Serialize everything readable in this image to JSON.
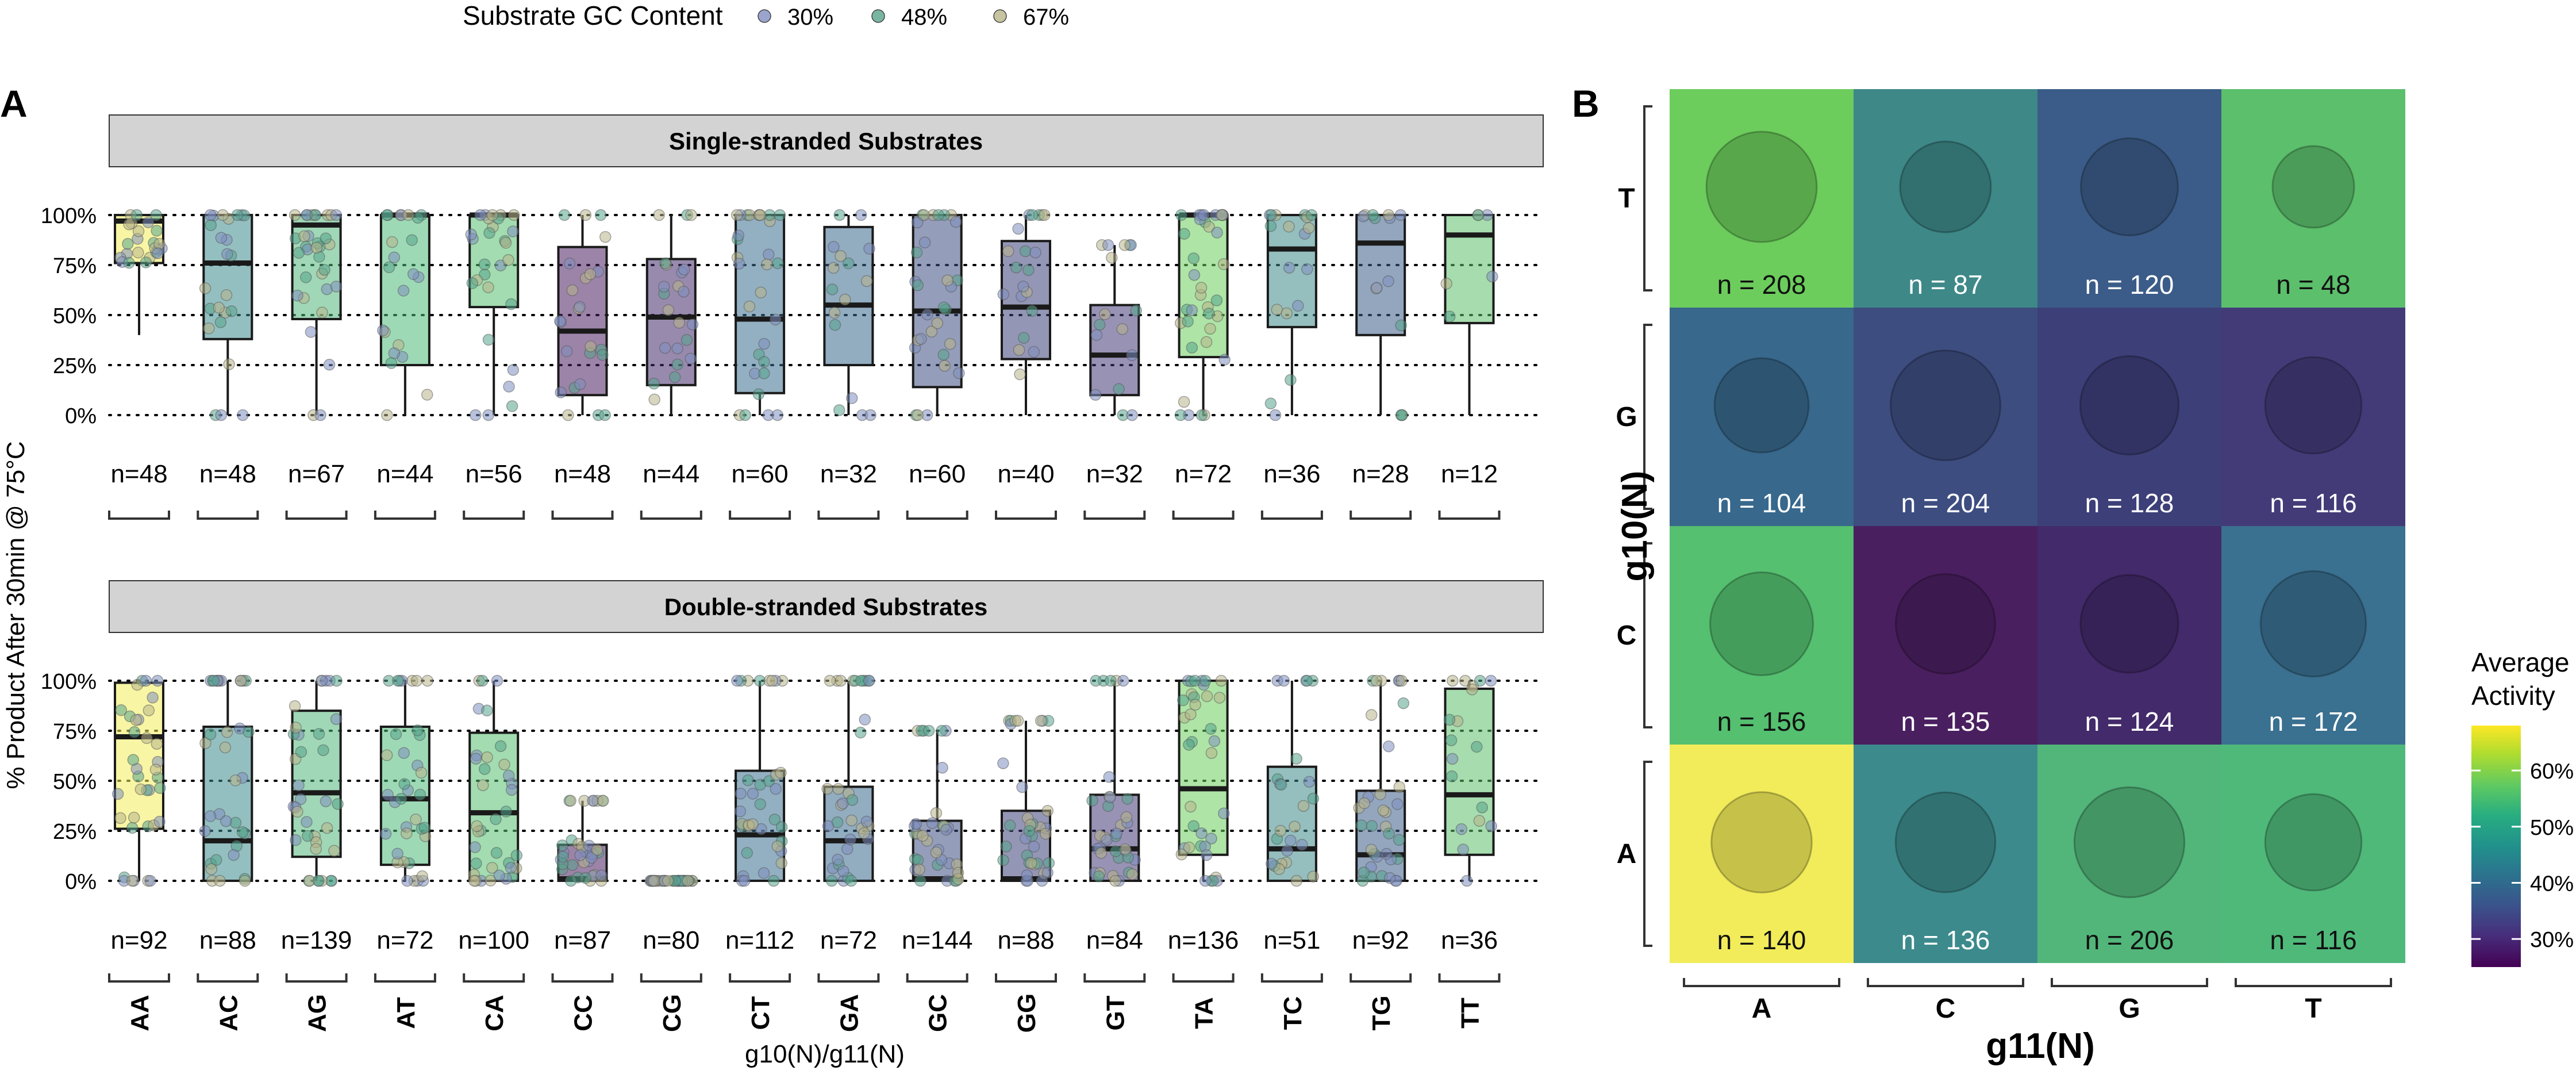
{
  "legend": {
    "title": "Substrate GC Content",
    "items": [
      {
        "label": "30%",
        "color": "#7f8fbf"
      },
      {
        "label": "48%",
        "color": "#56a48c"
      },
      {
        "label": "67%",
        "color": "#b8b58a"
      }
    ]
  },
  "panel_a": {
    "tag": "A",
    "ylabel": "% Product After 30min @ 75°C",
    "xlabel": "g10(N)/g11(N)",
    "y_ticks": [
      "0%",
      "25%",
      "50%",
      "75%",
      "100%"
    ]
  },
  "panel_b": {
    "tag": "B",
    "xlabel": "g11(N)",
    "ylabel": "g10(N)",
    "colorbar_title_1": "Average",
    "colorbar_title_2": "Activity",
    "colorbar_ticks": [
      "30%",
      "40%",
      "50%",
      "60%"
    ]
  },
  "colors": {
    "strip": "#d3d3d3",
    "grid": "#000000",
    "AA": "#f2ec5a",
    "AC": "#3c8a8c",
    "AG": "#52b67a",
    "AT": "#4fb97a",
    "CA": "#55c070",
    "CC": "#4a1f60",
    "CG": "#432a6a",
    "CT": "#3a7090",
    "GA": "#38688c",
    "GC": "#3d4d80",
    "GG": "#3d3f78",
    "GT": "#433b78",
    "TA": "#6ccd5c",
    "TC": "#3e8888",
    "TG": "#3b5c88",
    "TT": "#5cbf6c"
  },
  "chart_data": [
    {
      "type": "box",
      "title": "Single-stranded Substrates",
      "xlabel": "g10(N)/g11(N)",
      "ylabel": "% Product After 30min @ 75°C",
      "ylim": [
        0,
        100
      ],
      "categories": [
        "AA",
        "AC",
        "AG",
        "AT",
        "CA",
        "CC",
        "CG",
        "CT",
        "GA",
        "GC",
        "GG",
        "GT",
        "TA",
        "TC",
        "TG",
        "TT"
      ],
      "n_labels": [
        "n=48",
        "n=48",
        "n=67",
        "n=44",
        "n=56",
        "n=48",
        "n=44",
        "n=60",
        "n=32",
        "n=60",
        "n=40",
        "n=32",
        "n=72",
        "n=36",
        "n=28",
        "n=12"
      ],
      "boxes": [
        {
          "min": 40,
          "q1": 76,
          "median": 97,
          "q3": 100,
          "max": 100
        },
        {
          "min": 0,
          "q1": 38,
          "median": 76,
          "q3": 100,
          "max": 100
        },
        {
          "min": 0,
          "q1": 48,
          "median": 95,
          "q3": 100,
          "max": 100
        },
        {
          "min": 0,
          "q1": 25,
          "median": 100,
          "q3": 100,
          "max": 100
        },
        {
          "min": 0,
          "q1": 54,
          "median": 100,
          "q3": 100,
          "max": 100
        },
        {
          "min": 0,
          "q1": 10,
          "median": 42,
          "q3": 84,
          "max": 100
        },
        {
          "min": 0,
          "q1": 15,
          "median": 49,
          "q3": 78,
          "max": 100
        },
        {
          "min": 0,
          "q1": 11,
          "median": 48,
          "q3": 100,
          "max": 100
        },
        {
          "min": 0,
          "q1": 25,
          "median": 55,
          "q3": 94,
          "max": 100
        },
        {
          "min": 0,
          "q1": 14,
          "median": 52,
          "q3": 100,
          "max": 100
        },
        {
          "min": 0,
          "q1": 28,
          "median": 54,
          "q3": 87,
          "max": 100
        },
        {
          "min": 0,
          "q1": 10,
          "median": 30,
          "q3": 55,
          "max": 85
        },
        {
          "min": 0,
          "q1": 29,
          "median": 100,
          "q3": 100,
          "max": 100
        },
        {
          "min": 0,
          "q1": 44,
          "median": 83,
          "q3": 100,
          "max": 100
        },
        {
          "min": 0,
          "q1": 40,
          "median": 86,
          "q3": 100,
          "max": 100
        },
        {
          "min": 0,
          "q1": 46,
          "median": 90,
          "q3": 100,
          "max": 100
        }
      ]
    },
    {
      "type": "box",
      "title": "Double-stranded Substrates",
      "xlabel": "g10(N)/g11(N)",
      "ylabel": "% Product After 30min @ 75°C",
      "ylim": [
        0,
        100
      ],
      "categories": [
        "AA",
        "AC",
        "AG",
        "AT",
        "CA",
        "CC",
        "CG",
        "CT",
        "GA",
        "GC",
        "GG",
        "GT",
        "TA",
        "TC",
        "TG",
        "TT"
      ],
      "n_labels": [
        "n=92",
        "n=88",
        "n=139",
        "n=72",
        "n=100",
        "n=87",
        "n=80",
        "n=112",
        "n=72",
        "n=144",
        "n=88",
        "n=84",
        "n=136",
        "n=51",
        "n=92",
        "n=36"
      ],
      "boxes": [
        {
          "min": 0,
          "q1": 26,
          "median": 72,
          "q3": 99,
          "max": 100
        },
        {
          "min": 0,
          "q1": 0,
          "median": 20,
          "q3": 77,
          "max": 100
        },
        {
          "min": 0,
          "q1": 12,
          "median": 44,
          "q3": 85,
          "max": 100
        },
        {
          "min": 0,
          "q1": 8,
          "median": 41,
          "q3": 77,
          "max": 100
        },
        {
          "min": 0,
          "q1": 0,
          "median": 34,
          "q3": 74,
          "max": 100
        },
        {
          "min": 0,
          "q1": 0,
          "median": 1,
          "q3": 18,
          "max": 40
        },
        {
          "min": 0,
          "q1": 0,
          "median": 0,
          "q3": 0,
          "max": 0
        },
        {
          "min": 0,
          "q1": 0,
          "median": 23,
          "q3": 55,
          "max": 100
        },
        {
          "min": 0,
          "q1": 0,
          "median": 20,
          "q3": 47,
          "max": 100
        },
        {
          "min": 0,
          "q1": 0,
          "median": 1,
          "q3": 30,
          "max": 75
        },
        {
          "min": 0,
          "q1": 0,
          "median": 1,
          "q3": 35,
          "max": 80
        },
        {
          "min": 0,
          "q1": 0,
          "median": 16,
          "q3": 43,
          "max": 100
        },
        {
          "min": 0,
          "q1": 13,
          "median": 46,
          "q3": 100,
          "max": 100
        },
        {
          "min": 0,
          "q1": 0,
          "median": 16,
          "q3": 57,
          "max": 100
        },
        {
          "min": 0,
          "q1": 0,
          "median": 13,
          "q3": 45,
          "max": 100
        },
        {
          "min": 0,
          "q1": 13,
          "median": 43,
          "q3": 96,
          "max": 100
        }
      ]
    },
    {
      "type": "heatmap",
      "xlabel": "g11(N)",
      "ylabel": "g10(N)",
      "x_categories": [
        "A",
        "C",
        "G",
        "T"
      ],
      "y_categories": [
        "T",
        "G",
        "C",
        "A"
      ],
      "color_scale": {
        "title": "Average Activity",
        "range": [
          25,
          68
        ],
        "ticks": [
          30,
          40,
          50,
          60
        ]
      },
      "cells": [
        {
          "g10": "T",
          "g11": "A",
          "activity": 57,
          "n": 208,
          "label": "n = 208"
        },
        {
          "g10": "T",
          "g11": "C",
          "activity": 45,
          "n": 87,
          "label": "n = 87"
        },
        {
          "g10": "T",
          "g11": "G",
          "activity": 38,
          "n": 120,
          "label": "n = 120"
        },
        {
          "g10": "T",
          "g11": "T",
          "activity": 55,
          "n": 48,
          "label": "n = 48"
        },
        {
          "g10": "G",
          "g11": "A",
          "activity": 40,
          "n": 104,
          "label": "n = 104"
        },
        {
          "g10": "G",
          "g11": "C",
          "activity": 34,
          "n": 204,
          "label": "n = 204"
        },
        {
          "g10": "G",
          "g11": "G",
          "activity": 33,
          "n": 128,
          "label": "n = 128"
        },
        {
          "g10": "G",
          "g11": "T",
          "activity": 34,
          "n": 116,
          "label": "n = 116"
        },
        {
          "g10": "C",
          "g11": "A",
          "activity": 55,
          "n": 156,
          "label": "n = 156"
        },
        {
          "g10": "C",
          "g11": "C",
          "activity": 27,
          "n": 135,
          "label": "n = 135"
        },
        {
          "g10": "C",
          "g11": "G",
          "activity": 28,
          "n": 124,
          "label": "n = 124"
        },
        {
          "g10": "C",
          "g11": "T",
          "activity": 40,
          "n": 172,
          "label": "n = 172"
        },
        {
          "g10": "A",
          "g11": "A",
          "activity": 67,
          "n": 140,
          "label": "n = 140"
        },
        {
          "g10": "A",
          "g11": "C",
          "activity": 45,
          "n": 136,
          "label": "n = 136"
        },
        {
          "g10": "A",
          "g11": "G",
          "activity": 54,
          "n": 206,
          "label": "n = 206"
        },
        {
          "g10": "A",
          "g11": "T",
          "activity": 54,
          "n": 116,
          "label": "n = 116"
        }
      ]
    }
  ]
}
